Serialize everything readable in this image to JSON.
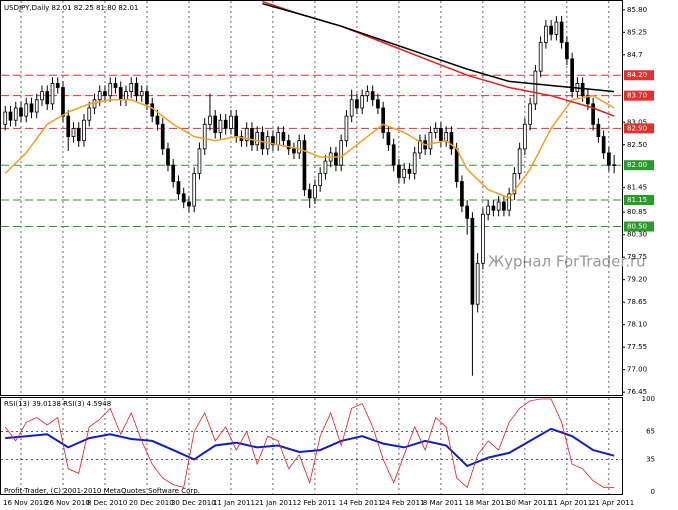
{
  "chart_data": {
    "type": "candlestick",
    "title": "USDJPY,Daily 82.01 82.25 81.80 82.01",
    "watermark": "Журнал ForTrader.ru",
    "copyright": "Profit-Trader, (C) 2001-2010 MetaQuotes Software Corp.",
    "candle_color": "#000000",
    "xlim": [
      -1,
      117.5
    ],
    "ylim": [
      76.38,
      86.04
    ],
    "xticks": [
      {
        "value": 3,
        "label": "16 Nov 2010"
      },
      {
        "value": 11,
        "label": "26 Nov 2010"
      },
      {
        "value": 19,
        "label": "8 Dec 2010"
      },
      {
        "value": 27,
        "label": "20 Dec 2010"
      },
      {
        "value": 35,
        "label": "30 Dec 2010"
      },
      {
        "value": 43,
        "label": "11 Jan 2011"
      },
      {
        "value": 51,
        "label": "21 Jan 2011"
      },
      {
        "value": 59,
        "label": "2 Feb 2011"
      },
      {
        "value": 67,
        "label": "14 Feb 2011"
      },
      {
        "value": 75,
        "label": "24 Feb 2011"
      },
      {
        "value": 83,
        "label": "8 Mar 2011"
      },
      {
        "value": 91,
        "label": "18 Mar 2011"
      },
      {
        "value": 99,
        "label": "30 Mar 2011"
      },
      {
        "value": 107,
        "label": "11 Apr 2011"
      },
      {
        "value": 115,
        "label": "21 Apr 2011"
      }
    ],
    "yticks": [
      {
        "value": 85.8,
        "label": "85.80"
      },
      85.25,
      84.7,
      83.05,
      {
        "value": 82.5,
        "label": "82.50"
      },
      81.45,
      80.85,
      {
        "value": 80.3,
        "label": "80.30"
      },
      79.75,
      {
        "value": 79.2,
        "label": "79.20"
      },
      78.65,
      {
        "value": 78.1,
        "label": "78.10"
      },
      77.55,
      {
        "value": 77.0,
        "label": "77.00"
      },
      76.45
    ],
    "levels": [
      {
        "value": 84.2,
        "label": "84.20",
        "color": "#e03030"
      },
      {
        "value": 83.7,
        "label": "83.70",
        "color": "#e03030"
      },
      {
        "value": 82.9,
        "label": "82.90",
        "color": "#e03030"
      },
      {
        "value": 82.0,
        "label": "82.00",
        "color": "#2a9a2a"
      },
      {
        "value": 81.15,
        "label": "81.15",
        "color": "#2a9a2a"
      },
      {
        "value": 80.5,
        "label": "80.50",
        "color": "#2a9a2a"
      }
    ],
    "ohlc": [
      [
        83.0,
        83.45,
        82.85,
        83.3
      ],
      [
        83.3,
        83.45,
        82.95,
        83.1
      ],
      [
        83.1,
        83.55,
        82.95,
        83.4
      ],
      [
        83.4,
        83.55,
        83.05,
        83.2
      ],
      [
        83.2,
        83.65,
        83.05,
        83.5
      ],
      [
        83.5,
        83.65,
        83.15,
        83.3
      ],
      [
        83.3,
        83.75,
        83.15,
        83.6
      ],
      [
        83.6,
        83.95,
        83.45,
        83.8
      ],
      [
        83.8,
        83.95,
        83.35,
        83.5
      ],
      [
        83.5,
        84.15,
        83.35,
        84.0
      ],
      [
        84.0,
        84.15,
        83.75,
        83.9
      ],
      [
        83.9,
        84.05,
        83.05,
        83.2
      ],
      [
        83.2,
        83.35,
        82.35,
        82.7
      ],
      [
        82.7,
        83.05,
        82.55,
        82.9
      ],
      [
        82.9,
        83.05,
        82.45,
        82.6
      ],
      [
        82.6,
        83.25,
        82.45,
        83.1
      ],
      [
        83.1,
        83.55,
        82.95,
        83.4
      ],
      [
        83.4,
        83.75,
        83.25,
        83.6
      ],
      [
        83.6,
        83.95,
        83.45,
        83.8
      ],
      [
        83.8,
        83.95,
        83.55,
        83.7
      ],
      [
        83.7,
        84.15,
        83.55,
        84.0
      ],
      [
        84.0,
        84.15,
        83.75,
        83.9
      ],
      [
        83.9,
        84.05,
        83.45,
        83.6
      ],
      [
        83.6,
        83.95,
        83.45,
        83.8
      ],
      [
        83.8,
        84.15,
        83.65,
        84.0
      ],
      [
        84.0,
        84.15,
        83.55,
        83.7
      ],
      [
        83.7,
        83.95,
        83.55,
        83.8
      ],
      [
        83.8,
        83.95,
        83.35,
        83.5
      ],
      [
        83.5,
        83.65,
        83.05,
        83.2
      ],
      [
        83.2,
        83.35,
        82.85,
        83.0
      ],
      [
        83.0,
        83.15,
        82.25,
        82.4
      ],
      [
        82.4,
        82.55,
        81.85,
        82.0
      ],
      [
        82.0,
        82.15,
        81.45,
        81.6
      ],
      [
        81.6,
        81.75,
        81.15,
        81.3
      ],
      [
        81.3,
        81.45,
        80.95,
        81.1
      ],
      [
        81.1,
        81.25,
        80.85,
        81.0
      ],
      [
        81.0,
        81.95,
        80.85,
        81.8
      ],
      [
        81.8,
        82.55,
        81.65,
        82.4
      ],
      [
        82.4,
        83.15,
        82.25,
        83.0
      ],
      [
        83.0,
        83.75,
        82.85,
        83.2
      ],
      [
        83.2,
        83.35,
        82.65,
        82.8
      ],
      [
        82.8,
        83.25,
        82.65,
        83.1
      ],
      [
        83.1,
        83.25,
        82.75,
        82.9
      ],
      [
        82.9,
        83.35,
        82.75,
        83.2
      ],
      [
        83.2,
        83.35,
        82.55,
        82.7
      ],
      [
        82.7,
        82.85,
        82.45,
        82.6
      ],
      [
        82.6,
        83.05,
        82.45,
        82.9
      ],
      [
        82.9,
        83.05,
        82.35,
        82.5
      ],
      [
        82.5,
        82.95,
        82.35,
        82.8
      ],
      [
        82.8,
        82.95,
        82.25,
        82.4
      ],
      [
        82.4,
        82.85,
        82.25,
        82.7
      ],
      [
        82.7,
        82.85,
        82.35,
        82.5
      ],
      [
        82.5,
        82.95,
        82.35,
        82.8
      ],
      [
        82.8,
        82.95,
        82.45,
        82.6
      ],
      [
        82.6,
        82.75,
        82.25,
        82.4
      ],
      [
        82.4,
        82.55,
        82.15,
        82.3
      ],
      [
        82.3,
        82.75,
        82.15,
        82.6
      ],
      [
        82.6,
        82.75,
        81.25,
        81.4
      ],
      [
        81.4,
        81.55,
        80.95,
        81.2
      ],
      [
        81.2,
        81.65,
        81.05,
        81.5
      ],
      [
        81.5,
        81.95,
        81.35,
        81.8
      ],
      [
        81.8,
        82.25,
        81.65,
        82.1
      ],
      [
        82.1,
        82.45,
        81.95,
        82.3
      ],
      [
        82.3,
        82.45,
        81.85,
        82.0
      ],
      [
        82.0,
        82.75,
        81.85,
        82.6
      ],
      [
        82.6,
        83.35,
        82.45,
        83.2
      ],
      [
        83.2,
        83.85,
        83.05,
        83.6
      ],
      [
        83.6,
        83.75,
        83.25,
        83.4
      ],
      [
        83.4,
        83.85,
        83.25,
        83.7
      ],
      [
        83.7,
        83.95,
        83.55,
        83.8
      ],
      [
        83.8,
        83.95,
        83.45,
        83.6
      ],
      [
        83.6,
        83.75,
        83.25,
        83.4
      ],
      [
        83.4,
        83.55,
        82.65,
        82.8
      ],
      [
        82.8,
        82.95,
        82.35,
        82.5
      ],
      [
        82.5,
        82.65,
        81.85,
        82.0
      ],
      [
        82.0,
        82.15,
        81.55,
        81.7
      ],
      [
        81.7,
        82.05,
        81.55,
        81.9
      ],
      [
        81.9,
        82.05,
        81.65,
        81.8
      ],
      [
        81.8,
        82.45,
        81.65,
        82.3
      ],
      [
        82.3,
        82.75,
        82.15,
        82.6
      ],
      [
        82.6,
        82.75,
        82.25,
        82.4
      ],
      [
        82.4,
        82.95,
        82.25,
        82.8
      ],
      [
        82.8,
        83.05,
        82.65,
        82.9
      ],
      [
        82.9,
        83.05,
        82.45,
        82.6
      ],
      [
        82.6,
        82.95,
        82.45,
        82.8
      ],
      [
        82.8,
        82.95,
        82.25,
        82.4
      ],
      [
        82.4,
        82.55,
        81.45,
        81.6
      ],
      [
        81.6,
        81.75,
        80.85,
        81.0
      ],
      [
        81.0,
        81.15,
        80.3,
        80.7
      ],
      [
        80.7,
        80.85,
        76.85,
        78.6
      ],
      [
        78.6,
        79.85,
        78.4,
        79.6
      ],
      [
        79.6,
        80.95,
        79.45,
        80.8
      ],
      [
        80.8,
        81.15,
        80.65,
        81.0
      ],
      [
        81.0,
        81.15,
        80.75,
        80.9
      ],
      [
        80.9,
        81.25,
        80.75,
        81.1
      ],
      [
        81.1,
        81.25,
        80.75,
        80.9
      ],
      [
        80.9,
        81.45,
        80.75,
        81.3
      ],
      [
        81.3,
        81.95,
        81.15,
        81.8
      ],
      [
        81.8,
        82.55,
        81.65,
        82.4
      ],
      [
        82.4,
        83.15,
        82.25,
        83.0
      ],
      [
        83.0,
        83.65,
        82.85,
        83.5
      ],
      [
        83.5,
        84.45,
        83.35,
        84.3
      ],
      [
        84.3,
        85.15,
        84.15,
        85.0
      ],
      [
        85.0,
        85.55,
        84.85,
        85.4
      ],
      [
        85.4,
        85.55,
        85.05,
        85.2
      ],
      [
        85.2,
        85.65,
        85.05,
        85.5
      ],
      [
        85.5,
        85.65,
        84.85,
        85.0
      ],
      [
        85.0,
        85.15,
        84.45,
        84.6
      ],
      [
        84.6,
        84.75,
        83.65,
        83.8
      ],
      [
        83.8,
        84.15,
        83.65,
        84.0
      ],
      [
        84.0,
        84.15,
        83.55,
        83.7
      ],
      [
        83.7,
        83.85,
        83.35,
        83.5
      ],
      [
        83.5,
        83.65,
        82.85,
        83.0
      ],
      [
        83.0,
        83.15,
        82.55,
        82.7
      ],
      [
        82.7,
        82.85,
        82.15,
        82.3
      ],
      [
        82.3,
        82.45,
        81.85,
        82.0
      ],
      [
        82.01,
        82.25,
        81.8,
        82.01
      ]
    ],
    "series": [
      {
        "color": "#f0a020",
        "width": 1.5,
        "x": [
          0,
          4,
          8,
          12,
          16,
          20,
          24,
          28,
          32,
          36,
          40,
          44,
          48,
          52,
          56,
          60,
          64,
          68,
          72,
          76,
          80,
          84,
          86,
          88,
          92,
          96,
          100,
          104,
          108,
          112,
          116
        ],
        "values": [
          81.8,
          82.3,
          83.0,
          83.3,
          83.5,
          83.6,
          83.6,
          83.4,
          83.0,
          82.7,
          82.6,
          82.7,
          82.6,
          82.5,
          82.4,
          82.2,
          82.2,
          82.6,
          83.0,
          82.8,
          82.5,
          82.6,
          82.4,
          81.9,
          81.4,
          81.2,
          81.9,
          82.9,
          83.6,
          83.7,
          83.4
        ]
      },
      {
        "color": "#e0201a",
        "width": 1.5,
        "x": [
          49,
          56,
          64,
          72,
          80,
          88,
          96,
          104,
          108,
          112,
          116
        ],
        "values": [
          86.0,
          85.7,
          85.4,
          85.0,
          84.6,
          84.2,
          83.9,
          83.7,
          83.55,
          83.4,
          83.2
        ]
      },
      {
        "color": "#000000",
        "width": 1.5,
        "x": [
          49,
          56,
          64,
          72,
          80,
          88,
          96,
          104,
          108,
          112,
          116
        ],
        "values": [
          85.95,
          85.7,
          85.4,
          85.05,
          84.7,
          84.35,
          84.05,
          83.95,
          83.9,
          83.85,
          83.8
        ]
      }
    ],
    "indicator": {
      "label": "RSI(13) 39.0138 RSI(3) 4.5948",
      "ylim": [
        0,
        100
      ],
      "yticks": [
        100,
        65,
        35,
        0
      ],
      "series": [
        {
          "color": "#1020c0",
          "width": 2,
          "x": [
            0,
            4,
            8,
            12,
            16,
            20,
            24,
            28,
            32,
            36,
            40,
            44,
            48,
            52,
            56,
            60,
            64,
            68,
            72,
            76,
            80,
            84,
            88,
            92,
            96,
            100,
            104,
            108,
            112,
            116
          ],
          "values": [
            58,
            60,
            62,
            48,
            58,
            62,
            57,
            55,
            45,
            35,
            50,
            53,
            48,
            50,
            43,
            45,
            55,
            60,
            52,
            48,
            55,
            50,
            28,
            37,
            42,
            55,
            68,
            60,
            45,
            39
          ]
        },
        {
          "color": "#e02020",
          "width": 0.8,
          "x": [
            0,
            2,
            4,
            6,
            8,
            10,
            12,
            14,
            16,
            18,
            20,
            22,
            24,
            26,
            28,
            30,
            32,
            34,
            36,
            38,
            40,
            42,
            44,
            46,
            48,
            50,
            52,
            54,
            56,
            58,
            60,
            62,
            64,
            66,
            68,
            70,
            72,
            74,
            76,
            78,
            80,
            82,
            84,
            86,
            88,
            90,
            92,
            94,
            96,
            98,
            100,
            102,
            104,
            106,
            108,
            110,
            112,
            114,
            116
          ],
          "values": [
            70,
            55,
            75,
            80,
            72,
            80,
            25,
            20,
            70,
            78,
            90,
            62,
            85,
            55,
            30,
            15,
            8,
            5,
            65,
            85,
            55,
            70,
            45,
            65,
            30,
            60,
            55,
            25,
            40,
            10,
            60,
            85,
            50,
            90,
            95,
            70,
            35,
            10,
            40,
            70,
            45,
            80,
            70,
            15,
            5,
            40,
            55,
            45,
            75,
            90,
            98,
            100,
            100,
            75,
            30,
            25,
            12,
            5,
            5
          ]
        }
      ]
    }
  }
}
